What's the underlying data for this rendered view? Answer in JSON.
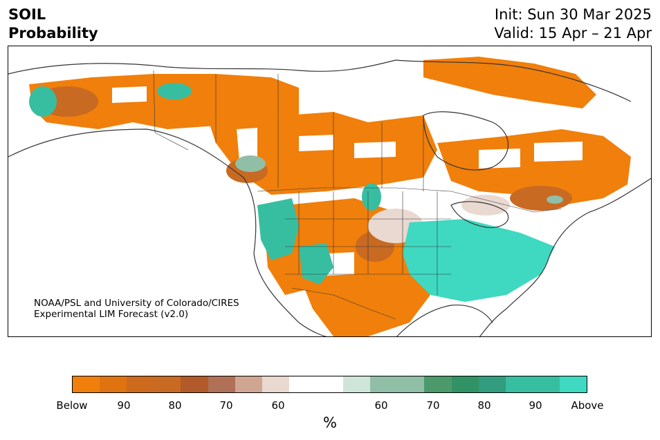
{
  "header": {
    "title_line1": "SOIL",
    "title_line2": "Probability",
    "init": "Init: Sun 30 Mar 2025",
    "valid": "Valid: 15 Apr – 21 Apr"
  },
  "credit": {
    "line1": "NOAA/PSL and University of Colorado/CIRES",
    "line2": "Experimental LIM Forecast (v2.0)"
  },
  "colorbar": {
    "unit": "%",
    "colors": [
      "#f07f0b",
      "#e0730f",
      "#cd6a1e",
      "#c96a22",
      "#b35a2a",
      "#b07058",
      "#d0a693",
      "#e9d9d1",
      "#ffffff",
      "#ffffff",
      "#cfe5da",
      "#91bea6",
      "#91bea6",
      "#4c9a6c",
      "#319265",
      "#319c7e",
      "#37bea1",
      "#37bea1",
      "#3fd8c1"
    ],
    "tick_labels": [
      "Below",
      "90",
      "80",
      "70",
      "60",
      "60",
      "70",
      "80",
      "90",
      "Above"
    ]
  },
  "map": {
    "colors": {
      "below": "#f07f0b",
      "below_mid": "#c96a22",
      "below_low": "#e9d9d1",
      "above_low": "#91bea6",
      "above_mid": "#37bea1",
      "above_high": "#3fd8c1"
    }
  }
}
